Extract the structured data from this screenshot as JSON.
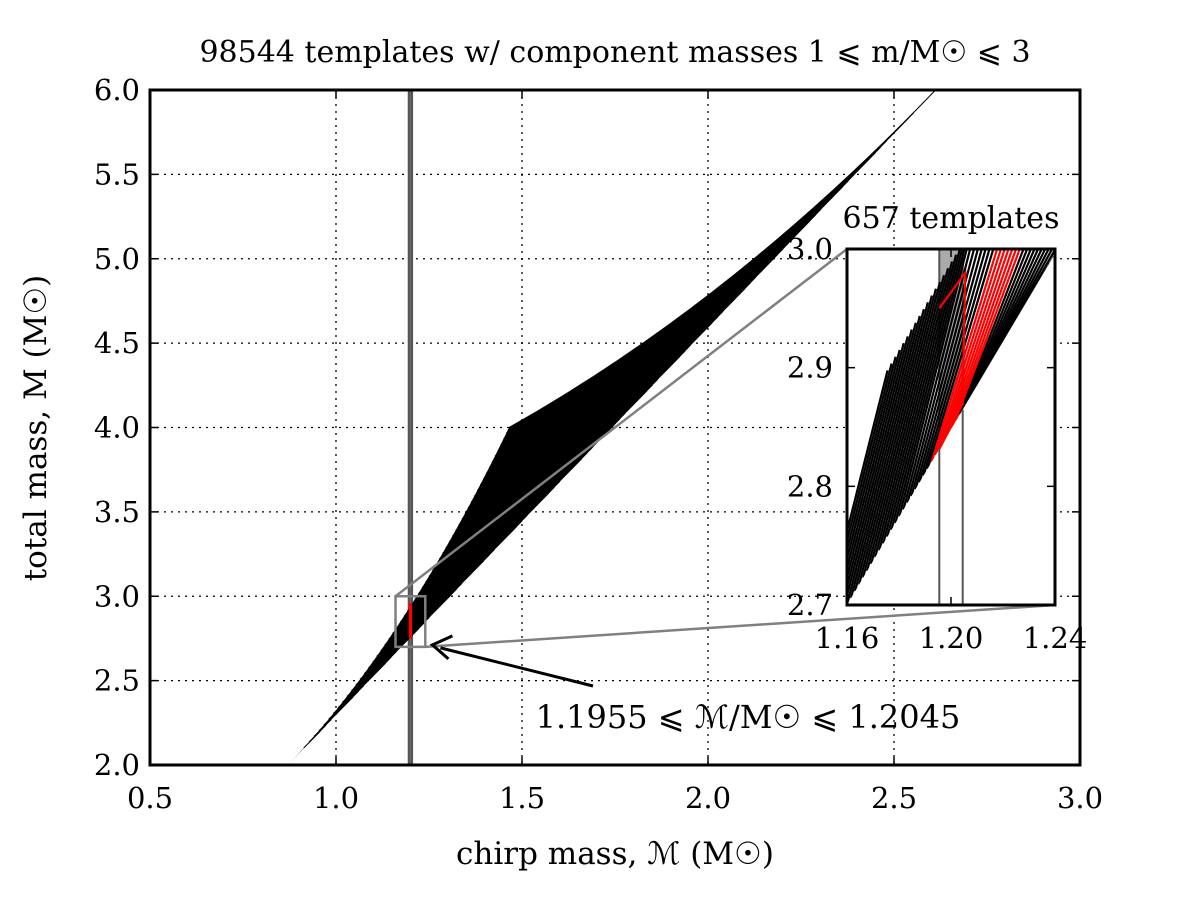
{
  "chart_data": [
    {
      "type": "line",
      "title": "98544 templates w/ component masses 1 ⩽ m/M☉ ⩽ 3",
      "xlabel": "chirp mass, ℳ (M☉)",
      "ylabel": "total mass, M (M☉)",
      "xlim": [
        0.5,
        3.0
      ],
      "ylim": [
        2.0,
        6.0
      ],
      "xticks": [
        "0.5",
        "1.0",
        "1.5",
        "2.0",
        "2.5",
        "3.0"
      ],
      "yticks": [
        "2.0",
        "2.5",
        "3.0",
        "3.5",
        "4.0",
        "4.5",
        "5.0",
        "5.5",
        "6.0"
      ],
      "grid": true,
      "template_count": 98544,
      "component_mass_range": [
        1,
        3
      ],
      "highlight_band": [
        1.1955,
        1.2045
      ],
      "highlight_color": "#ff0000",
      "band_color": "#666666",
      "annotation": {
        "text": "1.1955 ⩽ ℳ/M☉ ⩽ 1.2045",
        "points_to": [
          1.2,
          2.7
        ]
      },
      "zoom_box": {
        "x": [
          1.16,
          1.24
        ],
        "y": [
          2.7,
          3.0
        ]
      }
    },
    {
      "type": "line",
      "title": "657 templates",
      "xlim": [
        1.16,
        1.24
      ],
      "ylim": [
        2.7,
        3.0
      ],
      "xticks": [
        "1.16",
        "1.20",
        "1.24"
      ],
      "yticks": [
        "2.7",
        "2.8",
        "2.9",
        "3.0"
      ],
      "highlight_band": [
        1.1955,
        1.2045
      ],
      "highlight_color": "#ff0000",
      "band_color": "#aaaaaa"
    }
  ]
}
